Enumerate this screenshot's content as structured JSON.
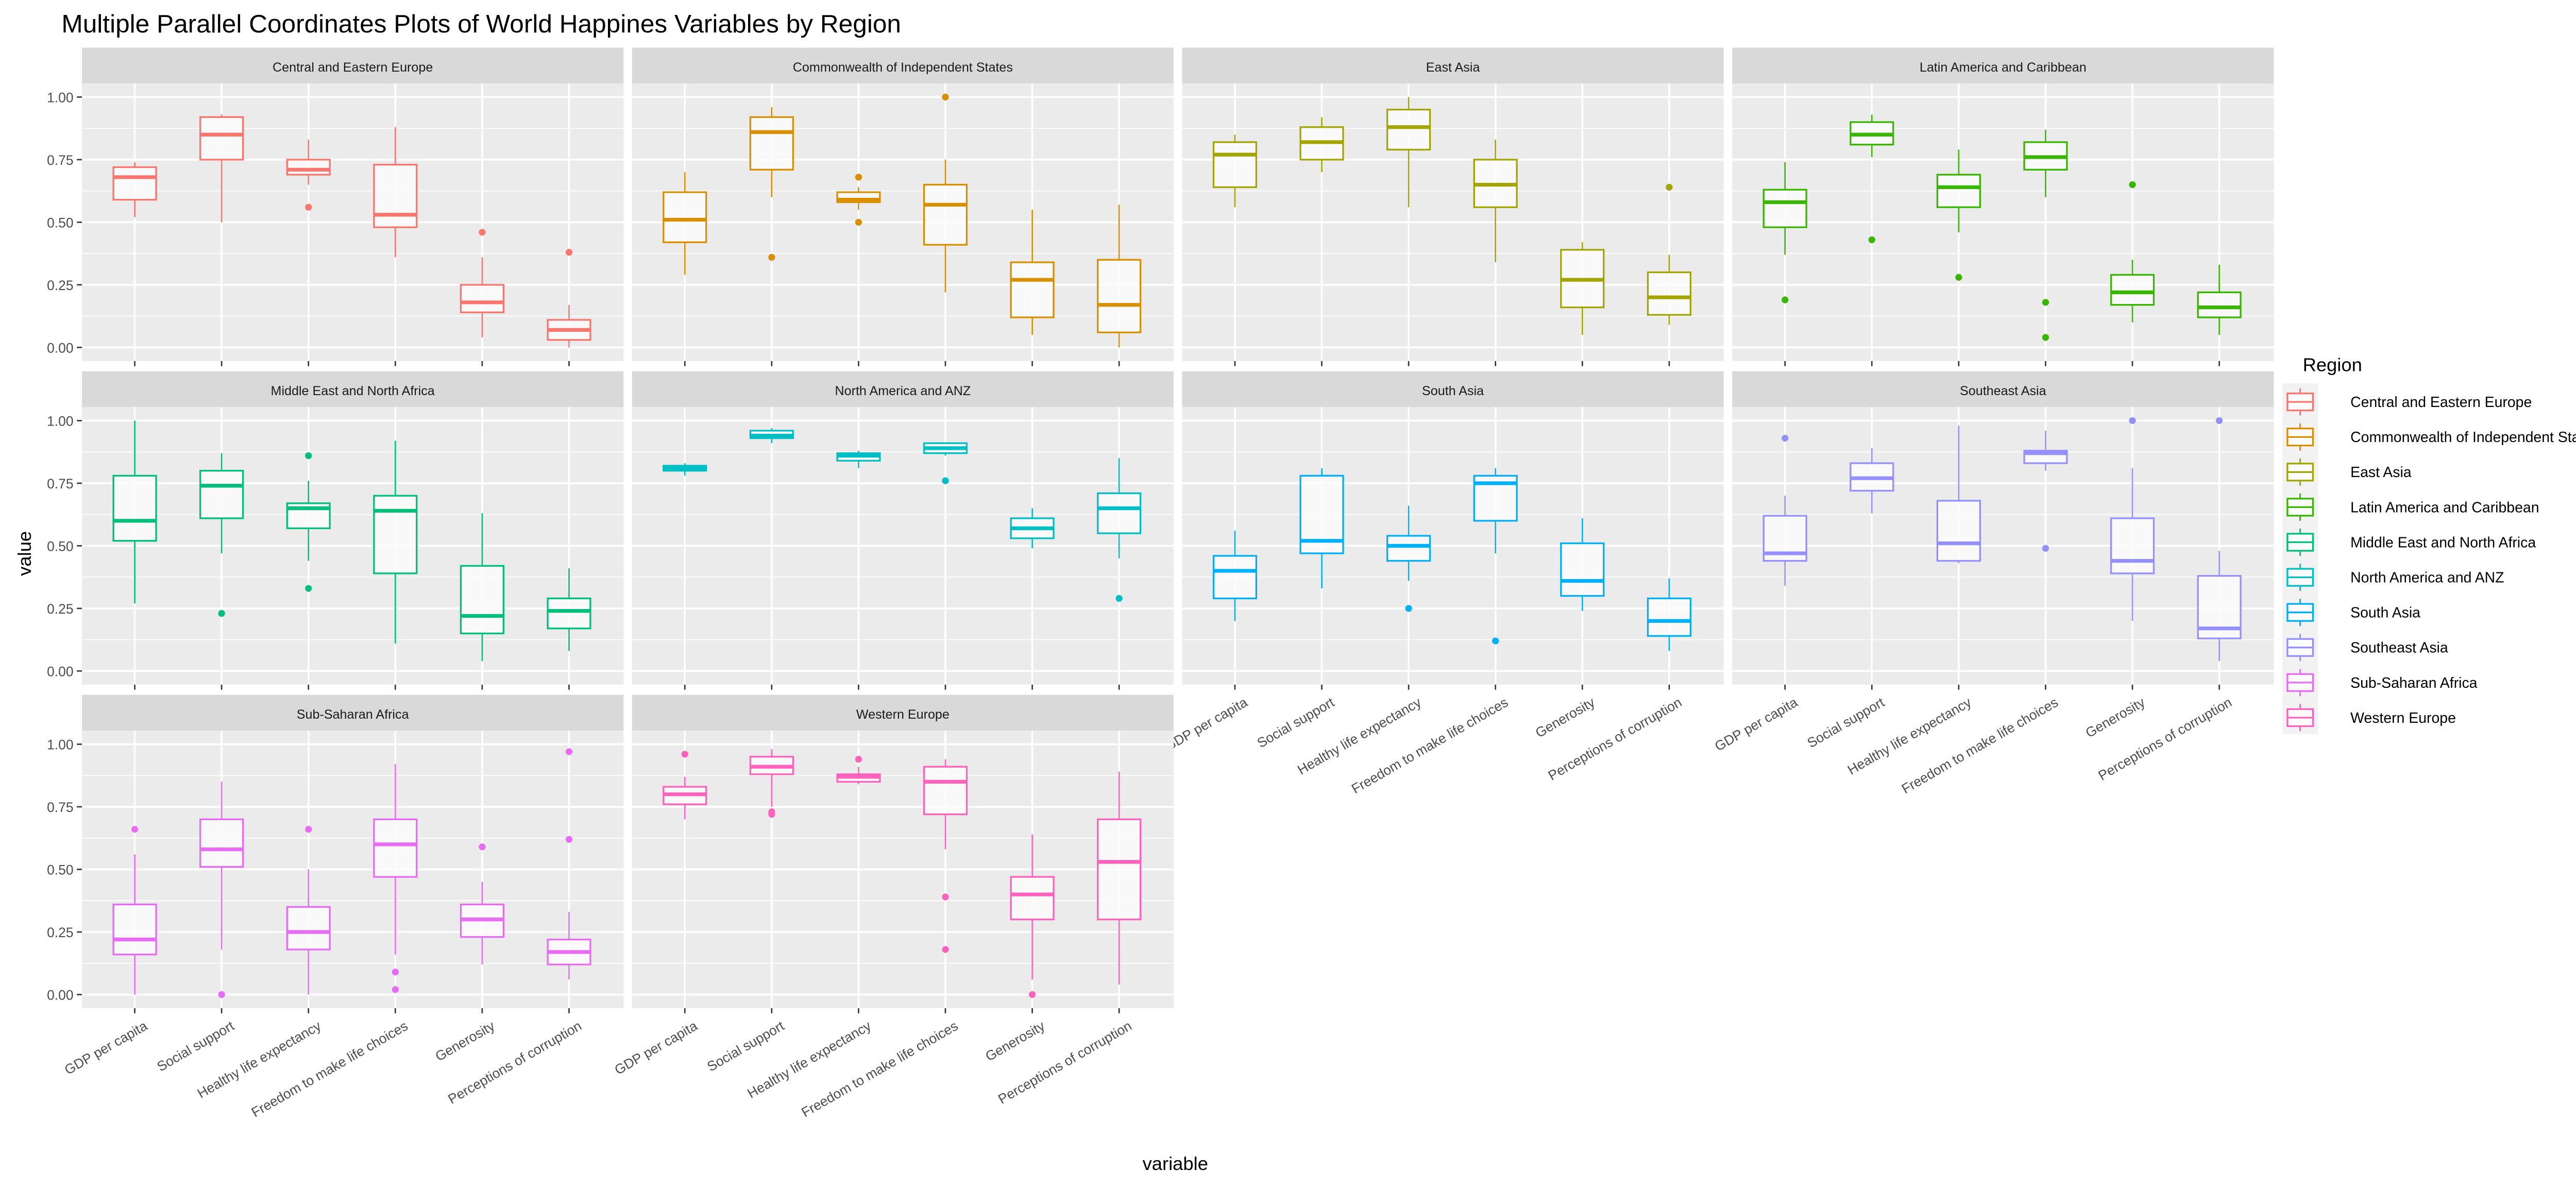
{
  "chart_data": {
    "type": "boxplot",
    "title": "Multiple Parallel Coordinates Plots of World Happines Variables by Region",
    "xlabel": "variable",
    "ylabel": "value",
    "ylim": [
      0,
      1
    ],
    "yticks": [
      "0.00",
      "0.25",
      "0.50",
      "0.75",
      "1.00"
    ],
    "ytick_values": [
      0,
      0.25,
      0.5,
      0.75,
      1
    ],
    "grid": true,
    "categories": [
      "GDP per capita",
      "Social support",
      "Healthy life expectancy",
      "Freedom to make life choices",
      "Generosity",
      "Perceptions of corruption"
    ],
    "legend": {
      "title": "Region",
      "placement": "right"
    },
    "stat_order": [
      "lower_whisker",
      "q1",
      "median",
      "q3",
      "upper_whisker"
    ],
    "panels": [
      {
        "name": "Central and Eastern Europe",
        "color": "#F8766D",
        "boxes": [
          [
            0.52,
            0.59,
            0.68,
            0.72,
            0.74
          ],
          [
            0.5,
            0.75,
            0.85,
            0.92,
            0.93
          ],
          [
            0.65,
            0.69,
            0.71,
            0.75,
            0.83
          ],
          [
            0.36,
            0.48,
            0.53,
            0.73,
            0.88
          ],
          [
            0.04,
            0.14,
            0.18,
            0.25,
            0.36
          ],
          [
            0.0,
            0.03,
            0.07,
            0.11,
            0.17
          ]
        ],
        "outliers": [
          [],
          [],
          [
            0.56
          ],
          [],
          [
            0.46
          ],
          [
            0.38
          ]
        ]
      },
      {
        "name": "Commonwealth of Independent States",
        "color": "#D89000",
        "boxes": [
          [
            0.29,
            0.42,
            0.51,
            0.62,
            0.7
          ],
          [
            0.6,
            0.71,
            0.86,
            0.92,
            0.96
          ],
          [
            0.55,
            0.58,
            0.59,
            0.62,
            0.64
          ],
          [
            0.22,
            0.41,
            0.57,
            0.65,
            0.75
          ],
          [
            0.05,
            0.12,
            0.27,
            0.34,
            0.55
          ],
          [
            0.0,
            0.06,
            0.17,
            0.35,
            0.57
          ]
        ],
        "outliers": [
          [],
          [
            0.36
          ],
          [
            0.68,
            0.5
          ],
          [
            1.0
          ],
          [],
          []
        ]
      },
      {
        "name": "East Asia",
        "color": "#A3A500",
        "boxes": [
          [
            0.56,
            0.64,
            0.77,
            0.82,
            0.85
          ],
          [
            0.7,
            0.75,
            0.82,
            0.88,
            0.92
          ],
          [
            0.56,
            0.79,
            0.88,
            0.95,
            1.0
          ],
          [
            0.34,
            0.56,
            0.65,
            0.75,
            0.83
          ],
          [
            0.05,
            0.16,
            0.27,
            0.39,
            0.42
          ],
          [
            0.09,
            0.13,
            0.2,
            0.3,
            0.37
          ]
        ],
        "outliers": [
          [],
          [],
          [],
          [],
          [],
          [
            0.64
          ]
        ]
      },
      {
        "name": "Latin America and Caribbean",
        "color": "#39B600",
        "boxes": [
          [
            0.37,
            0.48,
            0.58,
            0.63,
            0.74
          ],
          [
            0.76,
            0.81,
            0.85,
            0.9,
            0.93
          ],
          [
            0.46,
            0.56,
            0.64,
            0.69,
            0.79
          ],
          [
            0.6,
            0.71,
            0.76,
            0.82,
            0.87
          ],
          [
            0.1,
            0.17,
            0.22,
            0.29,
            0.35
          ],
          [
            0.05,
            0.12,
            0.16,
            0.22,
            0.33
          ]
        ],
        "outliers": [
          [
            0.19
          ],
          [
            0.43
          ],
          [
            0.28
          ],
          [
            0.18,
            0.04
          ],
          [
            0.65
          ],
          []
        ]
      },
      {
        "name": "Middle East and North Africa",
        "color": "#00BF7D",
        "boxes": [
          [
            0.27,
            0.52,
            0.6,
            0.78,
            1.0
          ],
          [
            0.47,
            0.61,
            0.74,
            0.8,
            0.87
          ],
          [
            0.44,
            0.57,
            0.65,
            0.67,
            0.76
          ],
          [
            0.11,
            0.39,
            0.64,
            0.7,
            0.92
          ],
          [
            0.04,
            0.15,
            0.22,
            0.42,
            0.63
          ],
          [
            0.08,
            0.17,
            0.24,
            0.29,
            0.41
          ]
        ],
        "outliers": [
          [],
          [
            0.23
          ],
          [
            0.86,
            0.33
          ],
          [],
          [],
          []
        ]
      },
      {
        "name": "North America and ANZ",
        "color": "#00BFC4",
        "boxes": [
          [
            0.78,
            0.8,
            0.81,
            0.82,
            0.83
          ],
          [
            0.91,
            0.93,
            0.94,
            0.96,
            0.97
          ],
          [
            0.81,
            0.84,
            0.86,
            0.87,
            0.88
          ],
          [
            0.86,
            0.87,
            0.89,
            0.91,
            0.91
          ],
          [
            0.49,
            0.53,
            0.57,
            0.61,
            0.65
          ],
          [
            0.45,
            0.55,
            0.65,
            0.71,
            0.85
          ]
        ],
        "outliers": [
          [],
          [],
          [],
          [
            0.76
          ],
          [],
          [
            0.29
          ]
        ]
      },
      {
        "name": "South Asia",
        "color": "#00B0F6",
        "boxes": [
          [
            0.2,
            0.29,
            0.4,
            0.46,
            0.56
          ],
          [
            0.33,
            0.47,
            0.52,
            0.78,
            0.81
          ],
          [
            0.36,
            0.44,
            0.5,
            0.54,
            0.66
          ],
          [
            0.47,
            0.6,
            0.75,
            0.78,
            0.81
          ],
          [
            0.24,
            0.3,
            0.36,
            0.51,
            0.61
          ],
          [
            0.08,
            0.14,
            0.2,
            0.29,
            0.37
          ]
        ],
        "outliers": [
          [],
          [],
          [
            0.25
          ],
          [
            0.12
          ],
          [],
          []
        ]
      },
      {
        "name": "Southeast Asia",
        "color": "#9590FF",
        "boxes": [
          [
            0.34,
            0.44,
            0.47,
            0.62,
            0.7
          ],
          [
            0.63,
            0.72,
            0.77,
            0.83,
            0.89
          ],
          [
            0.43,
            0.44,
            0.51,
            0.68,
            0.98
          ],
          [
            0.8,
            0.83,
            0.87,
            0.88,
            0.96
          ],
          [
            0.2,
            0.39,
            0.44,
            0.61,
            0.81
          ],
          [
            0.04,
            0.13,
            0.17,
            0.38,
            0.48
          ]
        ],
        "outliers": [
          [
            0.93
          ],
          [],
          [],
          [
            0.49
          ],
          [
            1.0
          ],
          [
            1.0
          ]
        ]
      },
      {
        "name": "Sub-Saharan Africa",
        "color": "#E76BF3",
        "boxes": [
          [
            0.0,
            0.16,
            0.22,
            0.36,
            0.56
          ],
          [
            0.18,
            0.51,
            0.58,
            0.7,
            0.85
          ],
          [
            0.0,
            0.18,
            0.25,
            0.35,
            0.5
          ],
          [
            0.16,
            0.47,
            0.6,
            0.7,
            0.92
          ],
          [
            0.12,
            0.23,
            0.3,
            0.36,
            0.45
          ],
          [
            0.06,
            0.12,
            0.17,
            0.22,
            0.33
          ]
        ],
        "outliers": [
          [
            0.66
          ],
          [
            0.0
          ],
          [
            0.66
          ],
          [
            0.09,
            0.02
          ],
          [
            0.59
          ],
          [
            0.97,
            0.62
          ]
        ]
      },
      {
        "name": "Western Europe",
        "color": "#FF62BC",
        "boxes": [
          [
            0.7,
            0.76,
            0.8,
            0.83,
            0.87
          ],
          [
            0.75,
            0.88,
            0.91,
            0.95,
            0.98
          ],
          [
            0.84,
            0.85,
            0.87,
            0.88,
            0.91
          ],
          [
            0.58,
            0.72,
            0.85,
            0.91,
            0.94
          ],
          [
            0.06,
            0.3,
            0.4,
            0.47,
            0.64
          ],
          [
            0.04,
            0.3,
            0.53,
            0.7,
            0.89
          ]
        ],
        "outliers": [
          [
            0.96
          ],
          [
            0.72,
            0.73
          ],
          [
            0.94
          ],
          [
            0.39,
            0.18
          ],
          [
            0.0
          ],
          []
        ]
      }
    ]
  }
}
